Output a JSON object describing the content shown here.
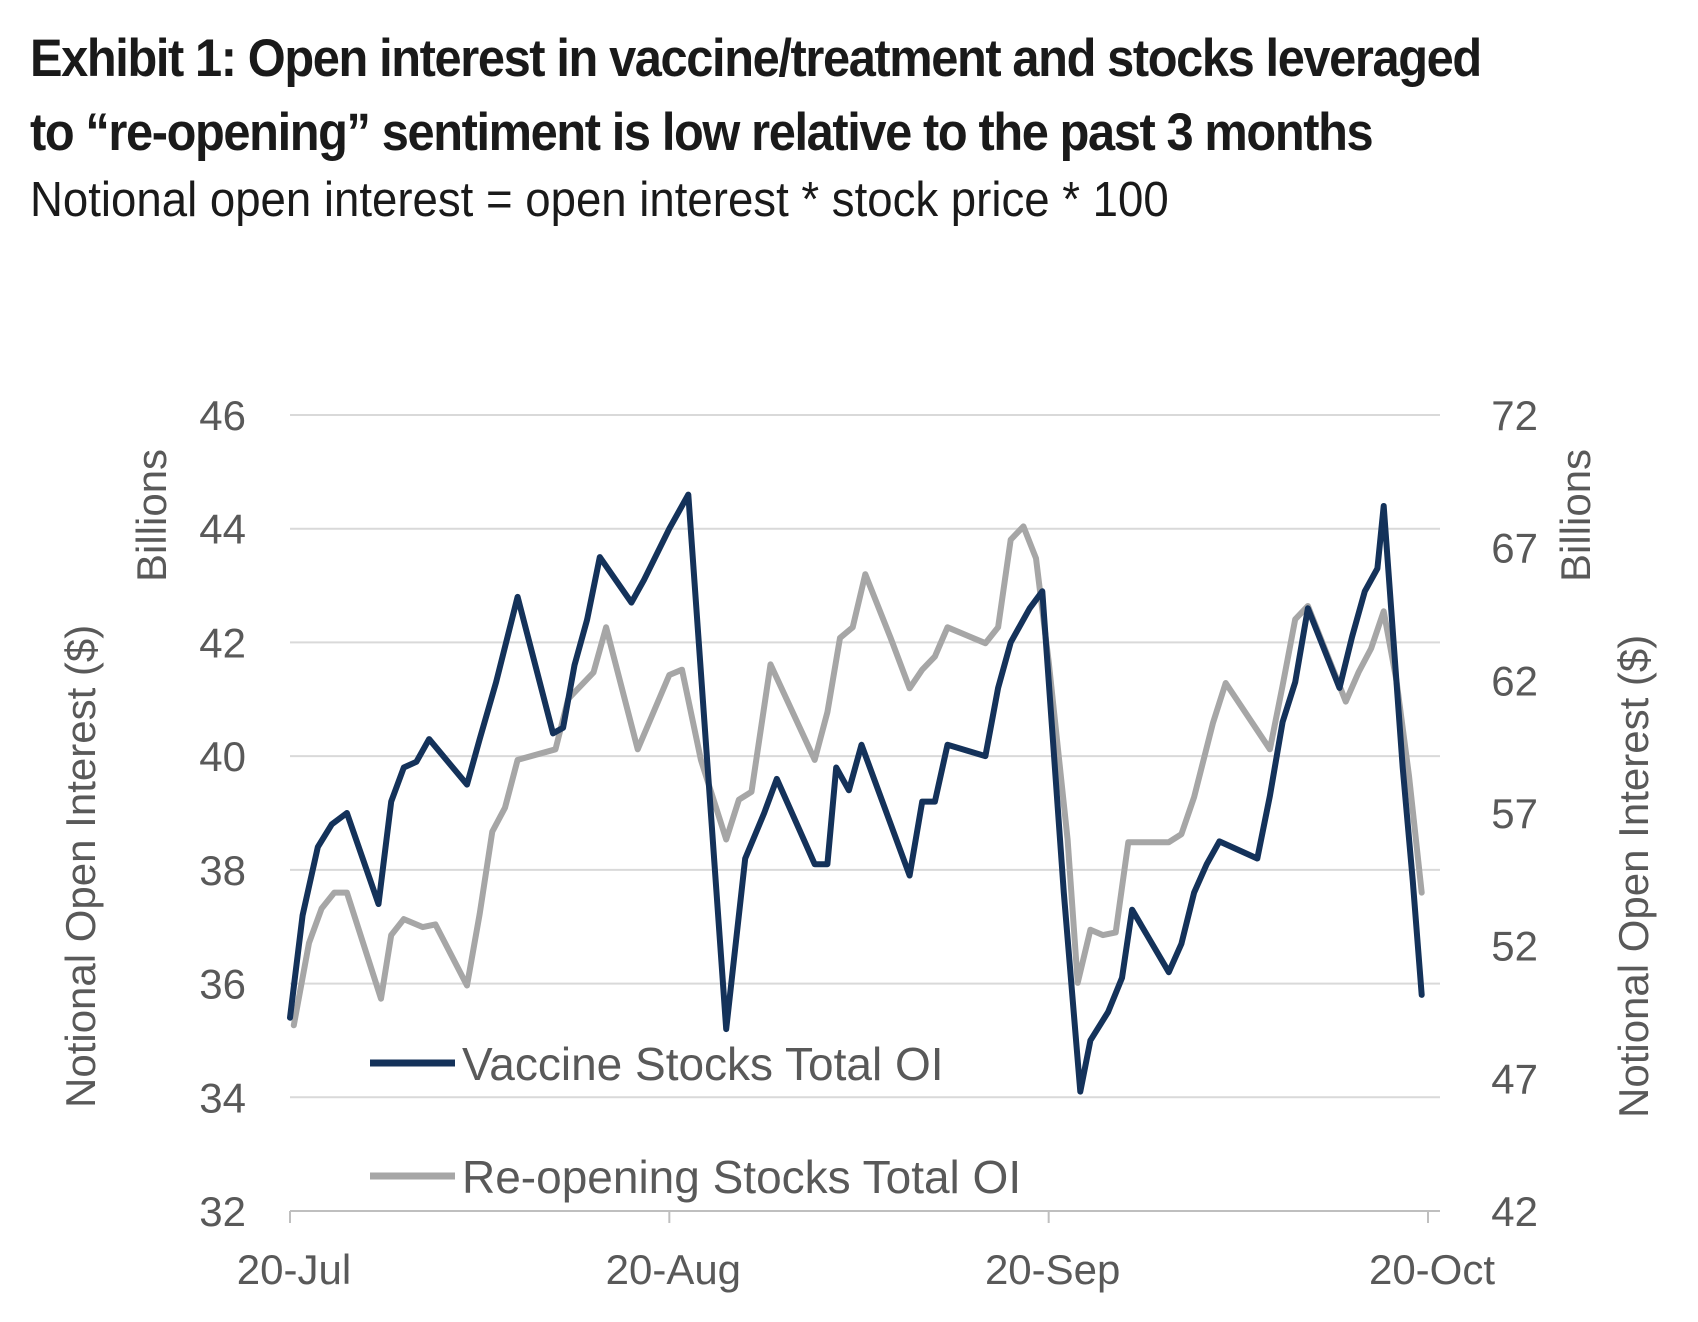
{
  "header": {
    "title_line1": "Exhibit 1: Open interest in vaccine/treatment and stocks leveraged",
    "title_line2": "to “re-opening” sentiment is low relative to the past 3 months",
    "subtitle": "Notional open interest = open interest * stock price * 100"
  },
  "chart_data": {
    "type": "line",
    "x_tick_labels": [
      "20-Jul",
      "20-Aug",
      "20-Sep",
      "20-Oct"
    ],
    "x_range_days": [
      0,
      90
    ],
    "y_left": {
      "label": "Notional Open Interest ($)",
      "unit": "Billions",
      "range": [
        32,
        46
      ],
      "ticks": [
        32,
        34,
        36,
        38,
        40,
        42,
        44,
        46
      ]
    },
    "y_right": {
      "label": "Notional Open Interest ($)",
      "unit": "Billions",
      "range": [
        42,
        72
      ],
      "ticks": [
        42,
        47,
        52,
        57,
        62,
        67,
        72
      ]
    },
    "gridlines": true,
    "legend_placement": "bottom-left",
    "series": [
      {
        "name": "Vaccine Stocks Total OI",
        "axis": "left",
        "color": "#14325a",
        "points": [
          [
            0,
            35.4
          ],
          [
            1,
            37.2
          ],
          [
            2.2,
            38.4
          ],
          [
            3.3,
            38.8
          ],
          [
            4.5,
            39.0
          ],
          [
            7,
            37.4
          ],
          [
            8,
            39.2
          ],
          [
            9,
            39.8
          ],
          [
            10,
            39.9
          ],
          [
            11,
            40.3
          ],
          [
            14,
            39.5
          ],
          [
            15,
            40.3
          ],
          [
            16.3,
            41.3
          ],
          [
            18,
            42.8
          ],
          [
            20.8,
            40.4
          ],
          [
            21.6,
            40.5
          ],
          [
            22.5,
            41.6
          ],
          [
            23.5,
            42.4
          ],
          [
            24.5,
            43.5
          ],
          [
            27,
            42.7
          ],
          [
            28,
            43.1
          ],
          [
            30,
            44.0
          ],
          [
            31.5,
            44.6
          ],
          [
            34.5,
            35.2
          ],
          [
            36,
            38.2
          ],
          [
            37.5,
            39.0
          ],
          [
            38.5,
            39.6
          ],
          [
            41.5,
            38.1
          ],
          [
            42.5,
            38.1
          ],
          [
            43.2,
            39.8
          ],
          [
            44.2,
            39.4
          ],
          [
            45.2,
            40.2
          ],
          [
            49,
            37.9
          ],
          [
            50,
            39.2
          ],
          [
            51,
            39.2
          ],
          [
            52,
            40.2
          ],
          [
            55,
            40.0
          ],
          [
            56,
            41.2
          ],
          [
            57,
            42.0
          ],
          [
            58.5,
            42.6
          ],
          [
            59.5,
            42.9
          ],
          [
            61.2,
            37.6
          ],
          [
            62.5,
            34.1
          ],
          [
            63.3,
            35.0
          ],
          [
            64.7,
            35.5
          ],
          [
            65.8,
            36.1
          ],
          [
            66.6,
            37.3
          ],
          [
            69.5,
            36.2
          ],
          [
            70.5,
            36.7
          ],
          [
            71.5,
            37.6
          ],
          [
            72.5,
            38.1
          ],
          [
            73.5,
            38.5
          ],
          [
            76.5,
            38.2
          ],
          [
            77.5,
            39.3
          ],
          [
            78.5,
            40.6
          ],
          [
            79.5,
            41.3
          ],
          [
            80.5,
            42.6
          ],
          [
            83,
            41.2
          ],
          [
            84,
            42.1
          ],
          [
            85,
            42.9
          ],
          [
            86,
            43.3
          ],
          [
            86.5,
            44.4
          ],
          [
            88,
            39.8
          ],
          [
            88.8,
            37.8
          ],
          [
            89.5,
            35.8
          ]
        ]
      },
      {
        "name": "Re-opening Stocks Total OI",
        "axis": "right",
        "color": "#a6a6a6",
        "points": [
          [
            0.3,
            49.0
          ],
          [
            1.5,
            52.1
          ],
          [
            2.5,
            53.4
          ],
          [
            3.5,
            54.0
          ],
          [
            4.5,
            54.0
          ],
          [
            7.2,
            50.0
          ],
          [
            8,
            52.4
          ],
          [
            9,
            53.0
          ],
          [
            10.5,
            52.7
          ],
          [
            11.5,
            52.8
          ],
          [
            14,
            50.5
          ],
          [
            15,
            53.2
          ],
          [
            16,
            56.3
          ],
          [
            17,
            57.2
          ],
          [
            18,
            59.0
          ],
          [
            21,
            59.4
          ],
          [
            22,
            61.3
          ],
          [
            24,
            62.3
          ],
          [
            25,
            64.0
          ],
          [
            27.5,
            59.4
          ],
          [
            30,
            62.2
          ],
          [
            31,
            62.4
          ],
          [
            32.5,
            59.0
          ],
          [
            34.5,
            56.0
          ],
          [
            35.5,
            57.5
          ],
          [
            36.5,
            57.8
          ],
          [
            38,
            62.6
          ],
          [
            41.5,
            59.0
          ],
          [
            42.5,
            60.8
          ],
          [
            43.5,
            63.6
          ],
          [
            44.5,
            64.0
          ],
          [
            45.5,
            66.0
          ],
          [
            47.5,
            63.6
          ],
          [
            49,
            61.7
          ],
          [
            50,
            62.4
          ],
          [
            51,
            62.9
          ],
          [
            52,
            64.0
          ],
          [
            55,
            63.4
          ],
          [
            56,
            64.0
          ],
          [
            57,
            67.3
          ],
          [
            58,
            67.8
          ],
          [
            59,
            66.6
          ],
          [
            60,
            62.7
          ],
          [
            61.5,
            56.0
          ],
          [
            62.3,
            50.6
          ],
          [
            63.3,
            52.6
          ],
          [
            64.3,
            52.4
          ],
          [
            65.3,
            52.5
          ],
          [
            66.3,
            55.9
          ],
          [
            69.5,
            55.9
          ],
          [
            70.5,
            56.2
          ],
          [
            71.5,
            57.6
          ],
          [
            73,
            60.4
          ],
          [
            74,
            61.9
          ],
          [
            77.5,
            59.4
          ],
          [
            78.5,
            61.8
          ],
          [
            79.5,
            64.3
          ],
          [
            80.5,
            64.8
          ],
          [
            83.5,
            61.2
          ],
          [
            84.5,
            62.3
          ],
          [
            85.5,
            63.2
          ],
          [
            86.5,
            64.6
          ],
          [
            87.5,
            62.0
          ],
          [
            88.5,
            58.4
          ],
          [
            89.5,
            54.0
          ]
        ]
      }
    ]
  }
}
